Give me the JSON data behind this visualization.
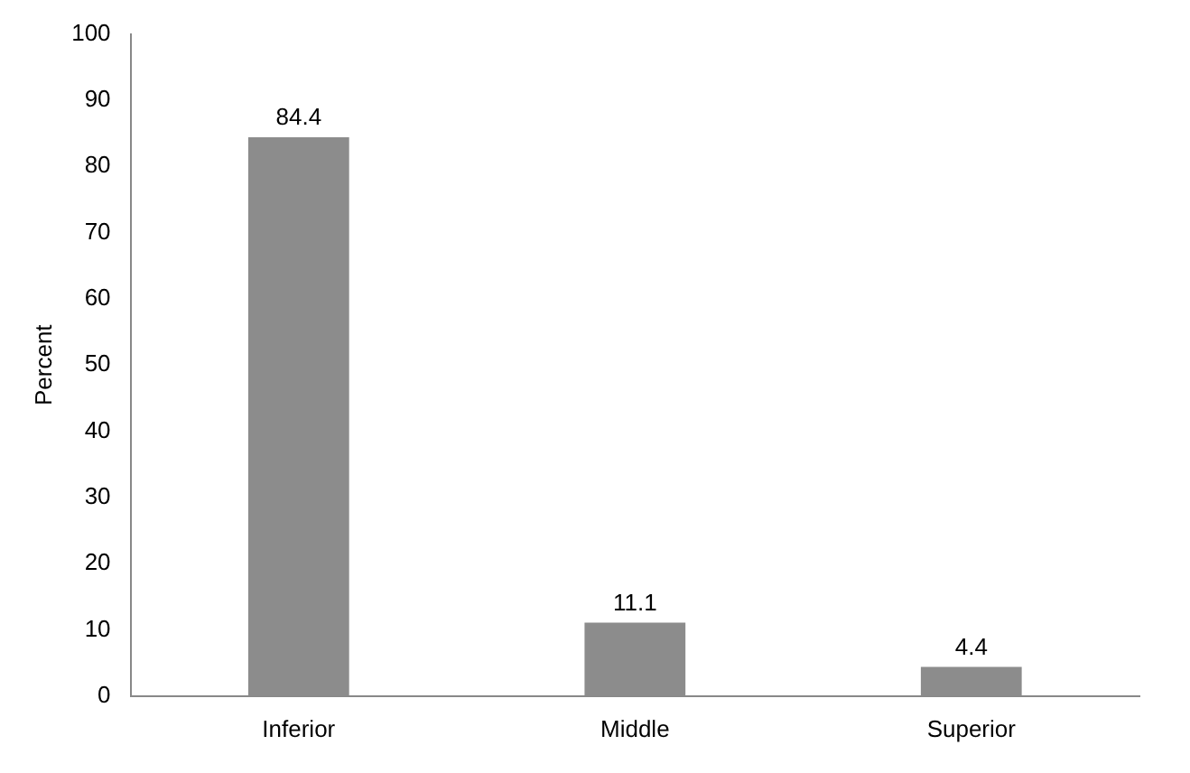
{
  "chart_data": {
    "type": "bar",
    "ylabel": "Percent",
    "categories": [
      "Inferior",
      "Middle",
      "Superior"
    ],
    "values": [
      84.4,
      11.1,
      4.4
    ],
    "color": "#8c8c8c",
    "ylim": [
      0,
      100
    ],
    "yticks": [
      0,
      10,
      20,
      30,
      40,
      50,
      60,
      70,
      80,
      90,
      100
    ],
    "grid": false,
    "legend": false,
    "data_labels": true
  }
}
